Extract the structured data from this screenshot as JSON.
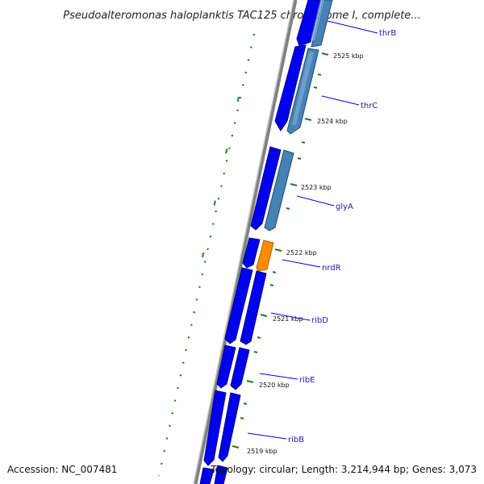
{
  "title": "Pseudoalteromonas haloplanktis TAC125 chromosome I, complete...",
  "footer": {
    "accession": "Accession: NC_007481",
    "summary": "Topology: circular; Length: 3,214,944 bp; Genes: 3,073"
  },
  "ticks": [
    "2525 kbp",
    "2524 kbp",
    "2523 kbp",
    "2522 kbp",
    "2521 kbp",
    "2520 kbp",
    "2519 kbp"
  ],
  "genes": [
    {
      "name": "thrB"
    },
    {
      "name": "thrC"
    },
    {
      "name": "glyA"
    },
    {
      "name": "nrdR"
    },
    {
      "name": "ribD"
    },
    {
      "name": "ribE"
    },
    {
      "name": "ribB"
    }
  ],
  "colors": {
    "backbone": "#808080",
    "gene_strand": "#0000ee",
    "gene_strand_dark": "#00008b",
    "cds": "#4682b4",
    "rna_highlight": "#ff8c00",
    "tick": "#1f7a1f",
    "label_line": "#0000ee"
  }
}
